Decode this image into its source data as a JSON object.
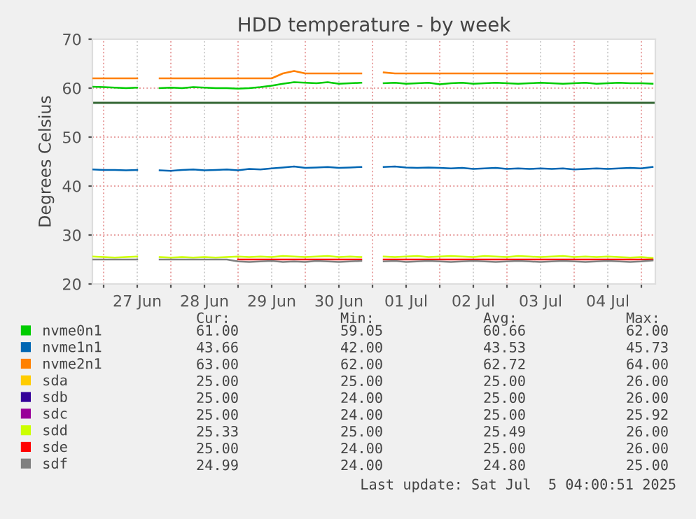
{
  "chart_data": {
    "type": "line",
    "title": "HDD temperature - by week",
    "ylabel": "Degrees Celsius",
    "x": [
      "2025-06-26T20:00",
      "2025-06-27T00:00",
      "2025-06-27T04:00",
      "2025-06-27T08:00",
      "2025-06-27T12:00",
      "2025-06-27T16:00",
      "2025-06-27T20:00",
      "2025-06-28T00:00",
      "2025-06-28T04:00",
      "2025-06-28T08:00",
      "2025-06-28T12:00",
      "2025-06-28T16:00",
      "2025-06-28T20:00",
      "2025-06-29T00:00",
      "2025-06-29T04:00",
      "2025-06-29T08:00",
      "2025-06-29T12:00",
      "2025-06-29T16:00",
      "2025-06-29T20:00",
      "2025-06-30T00:00",
      "2025-06-30T04:00",
      "2025-06-30T08:00",
      "2025-06-30T12:00",
      "2025-06-30T16:00",
      "2025-06-30T20:00",
      "2025-07-01T00:00",
      "2025-07-01T04:00",
      "2025-07-01T08:00",
      "2025-07-01T12:00",
      "2025-07-01T16:00",
      "2025-07-01T20:00",
      "2025-07-02T00:00",
      "2025-07-02T04:00",
      "2025-07-02T08:00",
      "2025-07-02T12:00",
      "2025-07-02T16:00",
      "2025-07-02T20:00",
      "2025-07-03T00:00",
      "2025-07-03T04:00",
      "2025-07-03T08:00",
      "2025-07-03T12:00",
      "2025-07-03T16:00",
      "2025-07-03T20:00",
      "2025-07-04T00:00",
      "2025-07-04T04:00",
      "2025-07-04T08:00",
      "2025-07-04T12:00",
      "2025-07-04T16:00",
      "2025-07-04T20:00",
      "2025-07-05T00:00",
      "2025-07-05T04:00"
    ],
    "series": [
      {
        "name": "nvme0n1",
        "color": "#00cc00",
        "values": [
          60.3,
          60.2,
          60.1,
          60.0,
          60.1,
          null,
          60.0,
          60.1,
          60.0,
          60.2,
          60.1,
          60.0,
          60.0,
          59.9,
          60.0,
          60.2,
          60.5,
          60.9,
          61.2,
          61.1,
          61.0,
          61.2,
          60.9,
          61.0,
          61.1,
          null,
          61.0,
          61.1,
          60.9,
          61.0,
          61.1,
          60.8,
          61.0,
          61.1,
          60.9,
          61.0,
          61.1,
          61.0,
          60.9,
          61.0,
          61.1,
          61.0,
          60.9,
          61.0,
          61.1,
          60.9,
          61.0,
          61.1,
          61.0,
          61.0,
          60.9
        ]
      },
      {
        "name": "nvme1n1",
        "color": "#0066b3",
        "values": [
          43.4,
          43.3,
          43.3,
          43.2,
          43.3,
          null,
          43.2,
          43.1,
          43.3,
          43.4,
          43.2,
          43.3,
          43.4,
          43.2,
          43.5,
          43.4,
          43.6,
          43.8,
          44.0,
          43.7,
          43.8,
          43.9,
          43.7,
          43.8,
          43.9,
          null,
          43.9,
          44.0,
          43.8,
          43.7,
          43.8,
          43.7,
          43.6,
          43.7,
          43.5,
          43.6,
          43.7,
          43.5,
          43.6,
          43.5,
          43.6,
          43.5,
          43.6,
          43.4,
          43.5,
          43.6,
          43.5,
          43.6,
          43.7,
          43.6,
          43.9
        ]
      },
      {
        "name": "nvme2n1",
        "color": "#ff8000",
        "values": [
          62,
          62,
          62,
          62,
          62,
          null,
          62,
          62,
          62,
          62,
          62,
          62,
          62,
          62,
          62,
          62,
          62,
          63,
          63.5,
          63,
          63,
          63,
          63,
          63,
          63,
          null,
          63.2,
          63,
          63,
          63,
          63,
          63,
          63,
          63,
          63,
          63,
          63,
          63,
          63,
          63,
          63,
          63,
          63,
          63,
          63,
          63,
          63,
          63,
          63,
          63,
          63
        ]
      },
      {
        "name": "sda",
        "color": "#ffcc00",
        "values": [
          null,
          null,
          null,
          null,
          null,
          null,
          null,
          null,
          null,
          null,
          null,
          null,
          null,
          null,
          null,
          null,
          null,
          null,
          null,
          null,
          null,
          null,
          null,
          null,
          null,
          null,
          null,
          null,
          null,
          null,
          null,
          null,
          null,
          null,
          null,
          null,
          null,
          null,
          null,
          null,
          null,
          null,
          null,
          null,
          null,
          null,
          null,
          null,
          null,
          null,
          null
        ]
      },
      {
        "name": "sdb",
        "color": "#330099",
        "values": [
          null,
          null,
          null,
          null,
          null,
          null,
          null,
          null,
          null,
          null,
          null,
          null,
          null,
          null,
          null,
          null,
          null,
          null,
          null,
          null,
          null,
          null,
          null,
          null,
          null,
          null,
          null,
          null,
          null,
          null,
          null,
          null,
          null,
          null,
          null,
          null,
          null,
          null,
          null,
          null,
          null,
          null,
          null,
          null,
          null,
          null,
          null,
          null,
          null,
          null,
          null
        ]
      },
      {
        "name": "sdc",
        "color": "#990099",
        "values": [
          null,
          null,
          null,
          null,
          null,
          null,
          null,
          null,
          null,
          null,
          null,
          null,
          null,
          null,
          null,
          null,
          null,
          null,
          null,
          null,
          null,
          null,
          null,
          null,
          null,
          null,
          null,
          null,
          null,
          null,
          null,
          null,
          null,
          null,
          null,
          null,
          null,
          null,
          null,
          null,
          null,
          null,
          null,
          null,
          null,
          null,
          null,
          null,
          null,
          null,
          null
        ]
      },
      {
        "name": "sdd",
        "color": "#ccff00",
        "values": [
          25.6,
          25.5,
          25.4,
          25.5,
          25.6,
          null,
          25.5,
          25.4,
          25.5,
          25.4,
          25.5,
          25.4,
          25.5,
          25.6,
          25.5,
          25.6,
          25.5,
          25.7,
          25.6,
          25.5,
          25.6,
          25.7,
          25.5,
          25.6,
          25.5,
          null,
          25.6,
          25.5,
          25.6,
          25.7,
          25.5,
          25.6,
          25.7,
          25.6,
          25.5,
          25.7,
          25.6,
          25.5,
          25.7,
          25.6,
          25.5,
          25.6,
          25.7,
          25.5,
          25.6,
          25.5,
          25.6,
          25.5,
          25.4,
          25.5,
          25.3
        ]
      },
      {
        "name": "sde",
        "color": "#ff0000",
        "values": [
          null,
          null,
          null,
          null,
          null,
          null,
          null,
          null,
          null,
          null,
          null,
          null,
          null,
          25,
          25,
          25,
          25,
          25,
          25,
          25,
          25,
          25,
          25,
          25,
          25,
          null,
          25,
          25,
          25,
          25,
          25,
          25,
          25,
          25,
          25,
          25,
          25,
          25,
          25,
          25,
          25,
          25,
          25,
          25,
          25,
          25,
          25,
          25,
          25,
          25,
          25
        ]
      },
      {
        "name": "sdf",
        "color": "#808080",
        "values": [
          25,
          25,
          25,
          25,
          25,
          null,
          25,
          25,
          25,
          25,
          25,
          25,
          25,
          24.6,
          24.5,
          24.6,
          24.7,
          24.5,
          24.6,
          24.5,
          24.7,
          24.6,
          24.5,
          24.6,
          24.7,
          null,
          24.6,
          24.7,
          24.5,
          24.6,
          24.7,
          24.6,
          24.5,
          24.6,
          24.7,
          24.6,
          24.5,
          24.6,
          24.7,
          24.6,
          24.5,
          24.6,
          24.7,
          24.6,
          24.5,
          24.6,
          24.7,
          24.6,
          24.5,
          24.6,
          24.8
        ]
      }
    ],
    "xlim": [
      "2025-06-26T20:00",
      "2025-07-05T05:00"
    ],
    "xticks": [
      {
        "value": "2025-06-27T00:00",
        "label": null
      },
      {
        "value": "2025-06-27T12:00",
        "label": "27 Jun"
      },
      {
        "value": "2025-06-28T00:00",
        "label": null
      },
      {
        "value": "2025-06-28T12:00",
        "label": "28 Jun"
      },
      {
        "value": "2025-06-29T00:00",
        "label": null
      },
      {
        "value": "2025-06-29T12:00",
        "label": "29 Jun"
      },
      {
        "value": "2025-06-30T00:00",
        "label": null
      },
      {
        "value": "2025-06-30T12:00",
        "label": "30 Jun"
      },
      {
        "value": "2025-07-01T00:00",
        "label": null
      },
      {
        "value": "2025-07-01T12:00",
        "label": "01 Jul"
      },
      {
        "value": "2025-07-02T00:00",
        "label": null
      },
      {
        "value": "2025-07-02T12:00",
        "label": "02 Jul"
      },
      {
        "value": "2025-07-03T00:00",
        "label": null
      },
      {
        "value": "2025-07-03T12:00",
        "label": "03 Jul"
      },
      {
        "value": "2025-07-04T00:00",
        "label": null
      },
      {
        "value": "2025-07-04T12:00",
        "label": "04 Jul"
      },
      {
        "value": "2025-07-05T00:00",
        "label": null
      }
    ],
    "ylim": [
      20,
      70
    ],
    "yticks": [
      20,
      30,
      40,
      50,
      60,
      70
    ],
    "ref_lines": [
      {
        "axis": "y",
        "value": 57,
        "color": "#336633"
      }
    ],
    "grid": true,
    "legend": "bottom",
    "marker": "none",
    "line_style": "solid",
    "annotations": [
      "Cur:",
      "Min:",
      "Avg:",
      "Max:",
      "61.00",
      "59.05",
      "60.66",
      "62.00",
      "43.66",
      "42.00",
      "43.53",
      "45.73",
      "63.00",
      "62.00",
      "62.72",
      "64.00",
      "25.00",
      "25.00",
      "25.00",
      "26.00",
      "25.00",
      "24.00",
      "25.00",
      "26.00",
      "25.00",
      "24.00",
      "25.00",
      "25.92",
      "25.33",
      "25.00",
      "25.49",
      "26.00",
      "25.00",
      "24.00",
      "25.00",
      "26.00",
      "24.99",
      "24.00",
      "24.80",
      "25.00",
      "Last update: Sat Jul  5 04:00:51 2025"
    ]
  }
}
